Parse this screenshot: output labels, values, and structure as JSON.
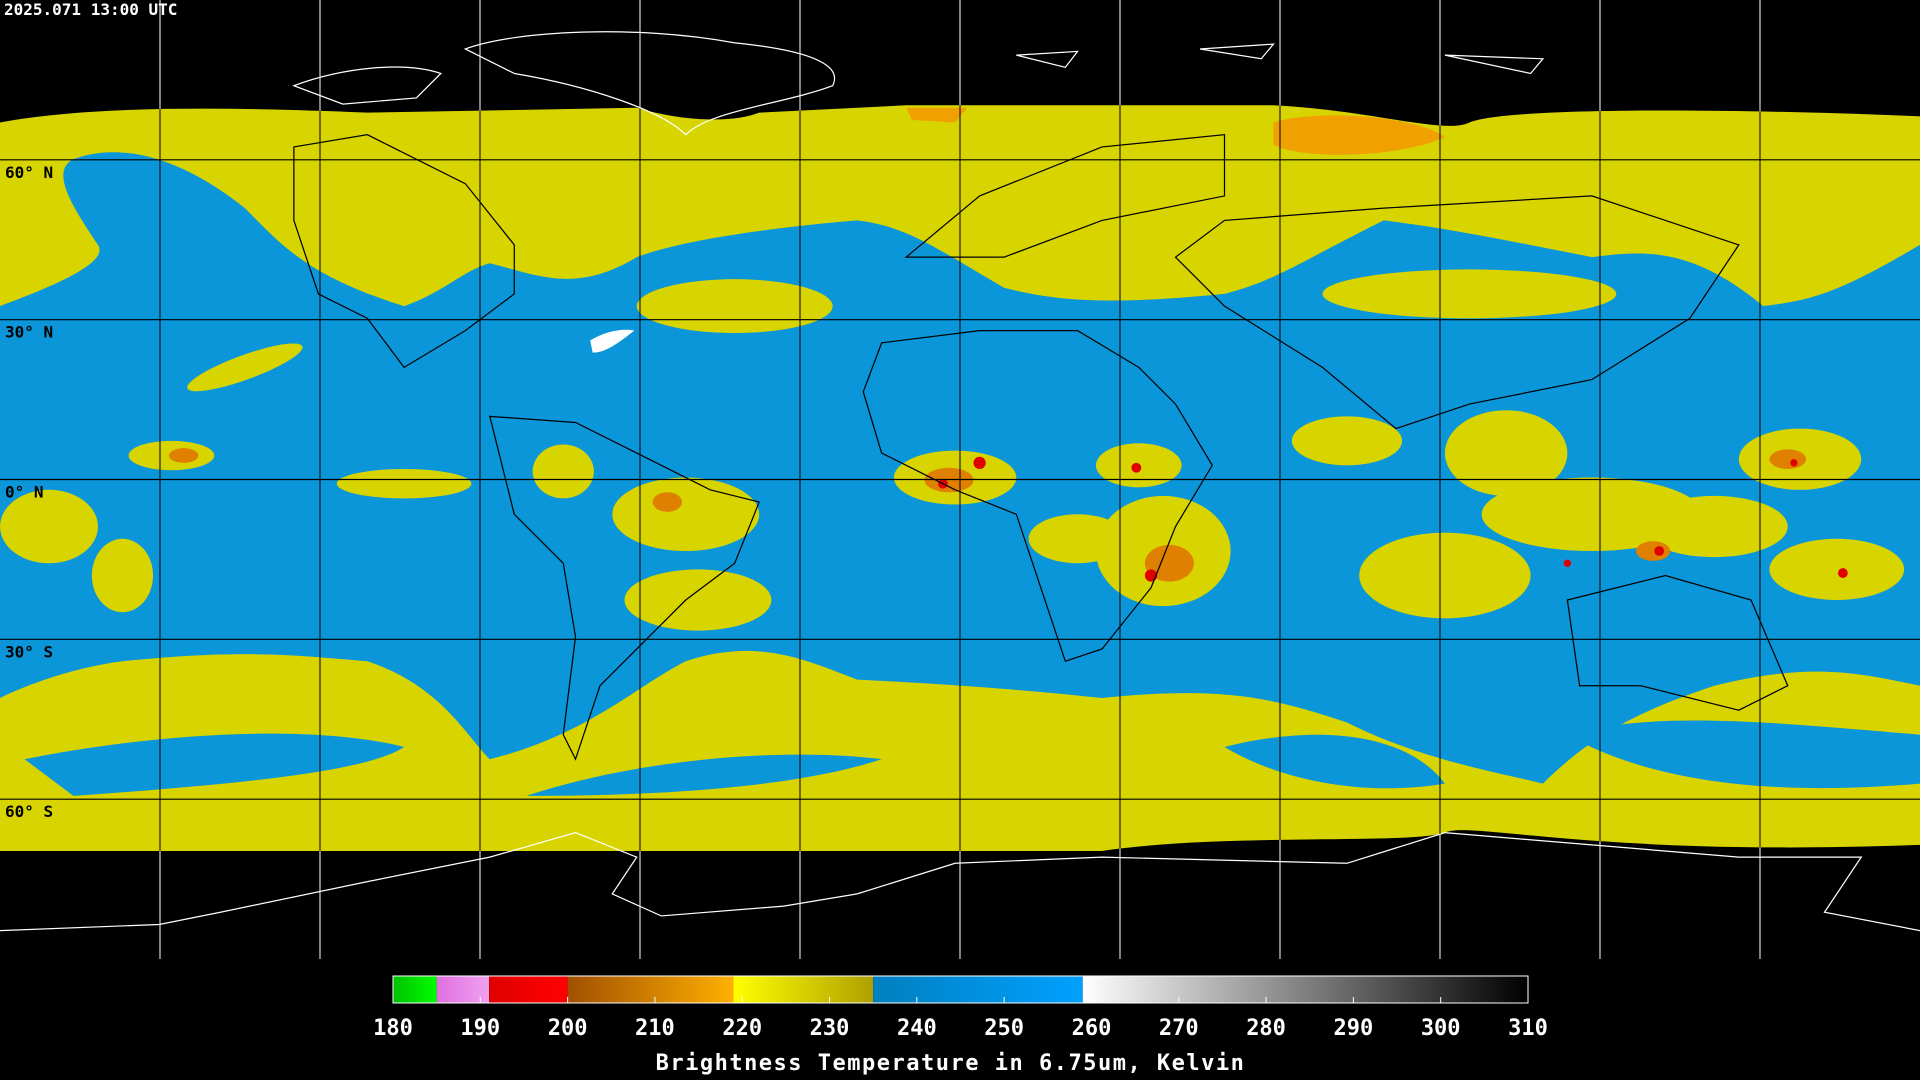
{
  "header": {
    "timestamp": "2025.071 13:00 UTC"
  },
  "map": {
    "ylim": [
      -90,
      90
    ],
    "latitudes": [
      {
        "value": 60,
        "label": "60° N"
      },
      {
        "value": 30,
        "label": "30° N"
      },
      {
        "value": 0,
        "label": "0° N"
      },
      {
        "value": -30,
        "label": "30° S"
      },
      {
        "value": -60,
        "label": "60° S"
      }
    ]
  },
  "colorbar": {
    "range": [
      180,
      310
    ],
    "ticks": [
      180,
      190,
      200,
      210,
      220,
      230,
      240,
      250,
      260,
      270,
      280,
      290,
      300,
      310
    ],
    "label": "Brightness Temperature in 6.75um, Kelvin",
    "segments": [
      {
        "range": [
          180,
          185
        ],
        "colors": [
          "#00c000",
          "#00ff00"
        ]
      },
      {
        "range": [
          185,
          191
        ],
        "colors": [
          "#e070e0",
          "#f0a0f0"
        ]
      },
      {
        "range": [
          191,
          200
        ],
        "colors": [
          "#e00000",
          "#ff0000"
        ]
      },
      {
        "range": [
          200,
          219
        ],
        "colors": [
          "#a05000",
          "#ffb000"
        ]
      },
      {
        "range": [
          219,
          235
        ],
        "colors": [
          "#ffff00",
          "#b0a000"
        ]
      },
      {
        "range": [
          235,
          259
        ],
        "colors": [
          "#0080c0",
          "#00a0ff"
        ]
      },
      {
        "range": [
          259,
          310
        ],
        "colors": [
          "#ffffff",
          "#000000"
        ]
      }
    ]
  }
}
